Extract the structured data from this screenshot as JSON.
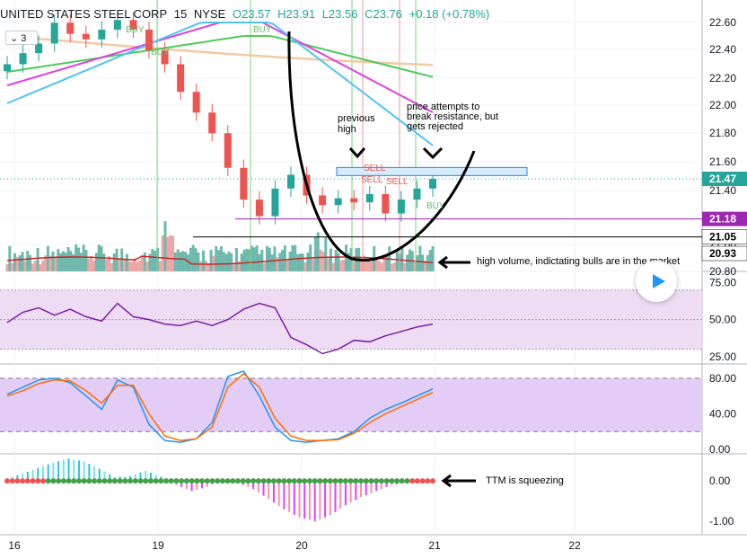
{
  "header": {
    "symbol": "UNITED STATES STEEL CORP",
    "interval": "15",
    "exchange": "NYSE",
    "open": "O23.57",
    "high": "H23.91",
    "low": "L23.56",
    "close": "C23.76",
    "change": "+0.18 (+0.78%)",
    "indicator_count": "3"
  },
  "annotations": {
    "previous_high": "previous high",
    "resistance": "price attempts to break resistance, but gets rejected",
    "volume": "high volume, indictating bulls are in the market",
    "ttm": "TTM is squeezing"
  },
  "price_badges": [
    "21.47",
    "21.18",
    "21.05",
    "20.93"
  ],
  "signals": [
    "BUY",
    "BUY",
    "BUY",
    "SELL",
    "SELL",
    "SELL",
    "BUY"
  ],
  "chart_data": [
    {
      "type": "candlestick",
      "yaxis_ticks": [
        "22.60",
        "22.40",
        "22.20",
        "22.00",
        "21.80",
        "21.60",
        "21.40",
        "21.20",
        "21.00",
        "20.80"
      ],
      "ylim": [
        20.8,
        22.7
      ],
      "xaxis_ticks": [
        "16",
        "19",
        "20",
        "21",
        "22"
      ],
      "close": [
        22.3,
        22.38,
        22.45,
        22.6,
        22.52,
        22.48,
        22.55,
        22.62,
        22.55,
        22.4,
        22.3,
        22.1,
        21.95,
        21.8,
        21.55,
        21.32,
        21.2,
        21.4,
        21.5,
        21.35,
        21.28,
        21.33,
        21.3,
        21.36,
        21.22,
        21.32,
        21.4,
        21.47
      ],
      "annotation_levels": [
        21.52,
        21.18,
        21.05,
        20.93
      ]
    },
    {
      "type": "line",
      "name": "RSI",
      "yaxis_ticks": [
        "75.00",
        "50.00",
        "25.00"
      ],
      "ylim": [
        20,
        82
      ],
      "values": [
        48,
        55,
        58,
        53,
        57,
        52,
        49,
        61,
        52,
        50,
        47,
        46,
        49,
        46,
        50,
        57,
        61,
        58,
        38,
        33,
        27,
        30,
        36,
        35,
        39,
        42,
        45,
        47
      ]
    },
    {
      "type": "line",
      "name": "Stochastic",
      "yaxis_ticks": [
        "80.00",
        "40.00",
        "0.00"
      ],
      "ylim": [
        -5,
        95
      ],
      "k": [
        62,
        70,
        78,
        80,
        75,
        60,
        45,
        78,
        70,
        28,
        10,
        8,
        12,
        30,
        82,
        88,
        60,
        25,
        10,
        8,
        10,
        12,
        20,
        35,
        45,
        52,
        60,
        68
      ],
      "d": [
        60,
        66,
        74,
        78,
        77,
        66,
        52,
        72,
        72,
        40,
        15,
        10,
        12,
        25,
        70,
        85,
        70,
        35,
        15,
        10,
        10,
        11,
        18,
        30,
        40,
        48,
        56,
        64
      ]
    },
    {
      "type": "bar",
      "name": "TTM Squeeze",
      "yaxis_ticks": [
        "0.00",
        "-1.00"
      ],
      "ylim": [
        -1.15,
        0.6
      ],
      "values": [
        0.05,
        0.18,
        0.32,
        0.45,
        0.55,
        0.48,
        0.3,
        0.1,
        0.12,
        0.25,
        0.1,
        -0.1,
        -0.25,
        -0.15,
        0.05,
        -0.05,
        -0.2,
        -0.45,
        -0.7,
        -0.9,
        -1.0,
        -0.85,
        -0.6,
        -0.4,
        -0.25,
        -0.1,
        -0.05,
        -0.02
      ]
    }
  ]
}
